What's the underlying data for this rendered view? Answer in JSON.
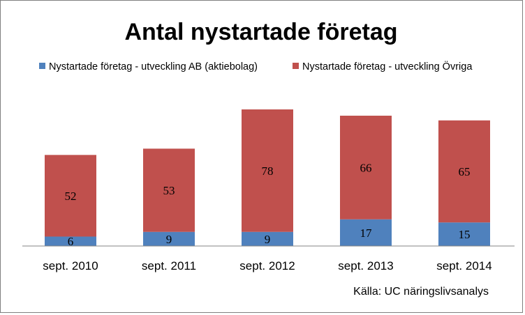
{
  "chart_data": {
    "type": "bar",
    "stacked": true,
    "title": "Antal nystartade företag",
    "categories": [
      "sept. 2010",
      "sept. 2011",
      "sept. 2012",
      "sept. 2013",
      "sept. 2014"
    ],
    "series": [
      {
        "name": "Nystartade företag - utveckling AB (aktiebolag)",
        "values": [
          6,
          9,
          9,
          17,
          15
        ],
        "color": "#4f81bd"
      },
      {
        "name": "Nystartade företag - utveckling Övriga",
        "values": [
          52,
          53,
          78,
          66,
          65
        ],
        "color": "#c0504d"
      }
    ],
    "ylim": [
      0,
      90
    ],
    "grid": false,
    "legend_position": "top",
    "data_labels": true,
    "source": "Källa: UC näringslivsanalys"
  }
}
